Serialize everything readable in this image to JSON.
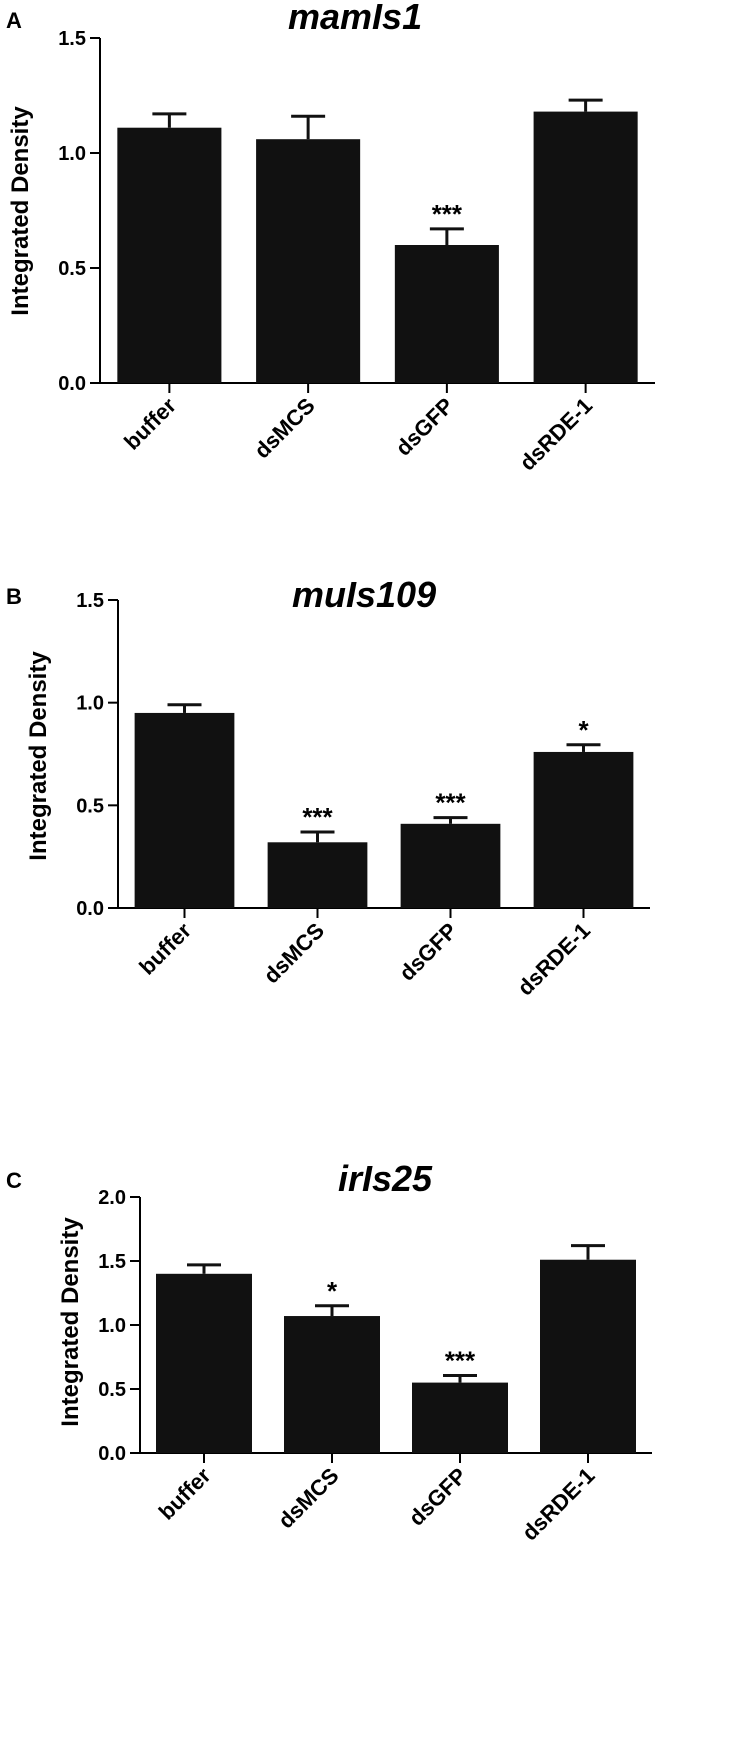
{
  "figure": {
    "colors": {
      "bar": "#111111",
      "axis": "#000000",
      "background": "#ffffff"
    }
  },
  "chart_data": [
    {
      "panel_letter": "A",
      "type": "bar",
      "title": "mamIs1",
      "ylabel": "Integrated Density",
      "xlabel": "",
      "categories": [
        "buffer",
        "dsMCS",
        "dsGFP",
        "dsRDE-1"
      ],
      "values": [
        1.11,
        1.06,
        0.6,
        1.18
      ],
      "errors": [
        0.06,
        0.1,
        0.07,
        0.05
      ],
      "significance": [
        "",
        "",
        "***",
        ""
      ],
      "ylim": [
        0,
        1.5
      ],
      "yticks": [
        0.0,
        0.5,
        1.0,
        1.5
      ],
      "ytick_labels": [
        "0.0",
        "0.5",
        "1.0",
        "1.5"
      ],
      "grid": false,
      "legend": "none"
    },
    {
      "panel_letter": "B",
      "type": "bar",
      "title": "muIs109",
      "ylabel": "Integrated Density",
      "xlabel": "",
      "categories": [
        "buffer",
        "dsMCS",
        "dsGFP",
        "dsRDE-1"
      ],
      "values": [
        0.95,
        0.32,
        0.41,
        0.76
      ],
      "errors": [
        0.04,
        0.05,
        0.03,
        0.035
      ],
      "significance": [
        "",
        "***",
        "***",
        "*"
      ],
      "ylim": [
        0,
        1.5
      ],
      "yticks": [
        0.0,
        0.5,
        1.0,
        1.5
      ],
      "ytick_labels": [
        "0.0",
        "0.5",
        "1.0",
        "1.5"
      ],
      "grid": false,
      "legend": "none"
    },
    {
      "panel_letter": "C",
      "type": "bar",
      "title": "irIs25",
      "ylabel": "Integrated Density",
      "xlabel": "",
      "categories": [
        "buffer",
        "dsMCS",
        "dsGFP",
        "dsRDE-1"
      ],
      "values": [
        1.4,
        1.07,
        0.55,
        1.51
      ],
      "errors": [
        0.07,
        0.08,
        0.055,
        0.11
      ],
      "significance": [
        "",
        "*",
        "***",
        ""
      ],
      "ylim": [
        0,
        2.0
      ],
      "yticks": [
        0.0,
        0.5,
        1.0,
        1.5,
        2.0
      ],
      "ytick_labels": [
        "0.0",
        "0.5",
        "1.0",
        "1.5",
        "2.0"
      ],
      "grid": false,
      "legend": "none"
    }
  ]
}
